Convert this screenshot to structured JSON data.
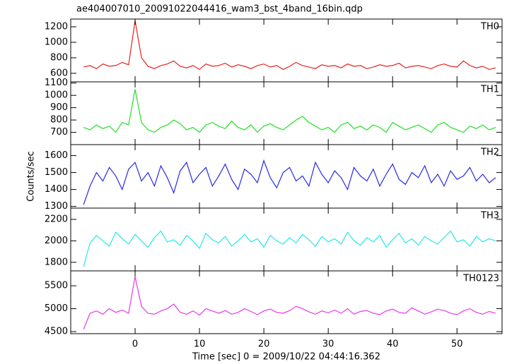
{
  "chart_data": [
    {
      "type": "line",
      "title": "ae404007010_20091022044416_wam3_bst_4band_16bin.qdp",
      "xlim": [
        -10,
        57
      ],
      "ylim": [
        490,
        1300
      ],
      "yticks": [
        600,
        800,
        1000,
        1200
      ],
      "series": [
        {
          "name": "TH0",
          "color": "#e8211e",
          "x": [
            -8,
            -7,
            -6,
            -5,
            -4,
            -3,
            -2,
            -1,
            0,
            1,
            2,
            3,
            4,
            5,
            6,
            7,
            8,
            9,
            10,
            11,
            12,
            13,
            14,
            15,
            16,
            17,
            18,
            19,
            20,
            21,
            22,
            23,
            24,
            25,
            26,
            27,
            28,
            29,
            30,
            31,
            32,
            33,
            34,
            35,
            36,
            37,
            38,
            39,
            40,
            41,
            42,
            43,
            44,
            45,
            46,
            47,
            48,
            49,
            50,
            51,
            52,
            53,
            54,
            55,
            56
          ],
          "values": [
            680,
            700,
            660,
            720,
            690,
            700,
            740,
            710,
            1280,
            800,
            690,
            660,
            700,
            720,
            760,
            690,
            670,
            700,
            650,
            720,
            690,
            700,
            730,
            680,
            710,
            690,
            660,
            700,
            720,
            680,
            700,
            650,
            690,
            740,
            700,
            680,
            660,
            710,
            690,
            700,
            670,
            720,
            690,
            700,
            660,
            680,
            710,
            690,
            700,
            730,
            670,
            690,
            700,
            680,
            660,
            700,
            720,
            690,
            680,
            760,
            700,
            670,
            690,
            650,
            670
          ]
        }
      ]
    },
    {
      "type": "line",
      "xlim": [
        -10,
        57
      ],
      "ylim": [
        600,
        1110
      ],
      "yticks": [
        700,
        800,
        900,
        1000,
        1100
      ],
      "series": [
        {
          "name": "TH1",
          "color": "#22e022",
          "x": [
            -8,
            -7,
            -6,
            -5,
            -4,
            -3,
            -2,
            -1,
            0,
            1,
            2,
            3,
            4,
            5,
            6,
            7,
            8,
            9,
            10,
            11,
            12,
            13,
            14,
            15,
            16,
            17,
            18,
            19,
            20,
            21,
            22,
            23,
            24,
            25,
            26,
            27,
            28,
            29,
            30,
            31,
            32,
            33,
            34,
            35,
            36,
            37,
            38,
            39,
            40,
            41,
            42,
            43,
            44,
            45,
            46,
            47,
            48,
            49,
            50,
            51,
            52,
            53,
            54,
            55,
            56
          ],
          "values": [
            740,
            720,
            760,
            730,
            750,
            700,
            780,
            760,
            1050,
            780,
            720,
            700,
            740,
            760,
            800,
            770,
            720,
            740,
            700,
            760,
            780,
            750,
            730,
            790,
            740,
            720,
            760,
            700,
            750,
            770,
            740,
            720,
            760,
            800,
            830,
            780,
            750,
            720,
            740,
            700,
            760,
            780,
            730,
            750,
            720,
            760,
            740,
            700,
            780,
            750,
            720,
            740,
            760,
            730,
            700,
            760,
            780,
            740,
            720,
            700,
            750,
            730,
            760,
            720,
            740
          ]
        }
      ]
    },
    {
      "type": "line",
      "ylabel": "Counts/sec",
      "xlim": [
        -10,
        57
      ],
      "ylim": [
        1290,
        1665
      ],
      "yticks": [
        1300,
        1400,
        1500,
        1600
      ],
      "series": [
        {
          "name": "TH2",
          "color": "#2a2ae0",
          "x": [
            -8,
            -7,
            -6,
            -5,
            -4,
            -3,
            -2,
            -1,
            0,
            1,
            2,
            3,
            4,
            5,
            6,
            7,
            8,
            9,
            10,
            11,
            12,
            13,
            14,
            15,
            16,
            17,
            18,
            19,
            20,
            21,
            22,
            23,
            24,
            25,
            26,
            27,
            28,
            29,
            30,
            31,
            32,
            33,
            34,
            35,
            36,
            37,
            38,
            39,
            40,
            41,
            42,
            43,
            44,
            45,
            46,
            47,
            48,
            49,
            50,
            51,
            52,
            53,
            54,
            55,
            56
          ],
          "values": [
            1310,
            1420,
            1500,
            1450,
            1530,
            1480,
            1400,
            1520,
            1560,
            1450,
            1500,
            1420,
            1540,
            1470,
            1380,
            1510,
            1560,
            1440,
            1490,
            1530,
            1420,
            1480,
            1550,
            1460,
            1400,
            1520,
            1490,
            1440,
            1570,
            1470,
            1410,
            1500,
            1530,
            1450,
            1480,
            1420,
            1560,
            1490,
            1440,
            1510,
            1470,
            1400,
            1530,
            1480,
            1450,
            1520,
            1420,
            1490,
            1550,
            1460,
            1430,
            1500,
            1470,
            1540,
            1440,
            1490,
            1420,
            1510,
            1460,
            1480,
            1530,
            1450,
            1490,
            1440,
            1470
          ]
        }
      ]
    },
    {
      "type": "line",
      "xlim": [
        -10,
        57
      ],
      "ylim": [
        1720,
        2305
      ],
      "yticks": [
        1800,
        2000,
        2200
      ],
      "series": [
        {
          "name": "TH3",
          "color": "#22e8e8",
          "x": [
            -8,
            -7,
            -6,
            -5,
            -4,
            -3,
            -2,
            -1,
            0,
            1,
            2,
            3,
            4,
            5,
            6,
            7,
            8,
            9,
            10,
            11,
            12,
            13,
            14,
            15,
            16,
            17,
            18,
            19,
            20,
            21,
            22,
            23,
            24,
            25,
            26,
            27,
            28,
            29,
            30,
            31,
            32,
            33,
            34,
            35,
            36,
            37,
            38,
            39,
            40,
            41,
            42,
            43,
            44,
            45,
            46,
            47,
            48,
            49,
            50,
            51,
            52,
            53,
            54,
            55,
            56
          ],
          "values": [
            1760,
            1980,
            2050,
            2000,
            1950,
            2080,
            2020,
            1970,
            2060,
            2000,
            1940,
            2030,
            2090,
            1990,
            2010,
            1960,
            2050,
            2000,
            1930,
            2070,
            2010,
            1980,
            2040,
            1950,
            2000,
            2060,
            1990,
            2020,
            1940,
            2050,
            2000,
            1970,
            2030,
            1980,
            2060,
            2010,
            1950,
            2040,
            1990,
            2020,
            1970,
            2080,
            2000,
            1960,
            2030,
            1990,
            2050,
            1940,
            2010,
            2070,
            1980,
            2020,
            1960,
            2040,
            2000,
            1970,
            2030,
            2090,
            1990,
            2010,
            1950,
            2040,
            1990,
            2020,
            2000
          ]
        }
      ]
    },
    {
      "type": "line",
      "xlabel": "Time [sec] 0 = 2009/10/22 04:44:16.362",
      "xlim": [
        -10,
        57
      ],
      "xticks": [
        0,
        10,
        20,
        30,
        40,
        50
      ],
      "ylim": [
        4455,
        5825
      ],
      "yticks": [
        4500,
        5000,
        5500
      ],
      "series": [
        {
          "name": "TH0123",
          "color": "#e838e8",
          "x": [
            -8,
            -7,
            -6,
            -5,
            -4,
            -3,
            -2,
            -1,
            0,
            1,
            2,
            3,
            4,
            5,
            6,
            7,
            8,
            9,
            10,
            11,
            12,
            13,
            14,
            15,
            16,
            17,
            18,
            19,
            20,
            21,
            22,
            23,
            24,
            25,
            26,
            27,
            28,
            29,
            30,
            31,
            32,
            33,
            34,
            35,
            36,
            37,
            38,
            39,
            40,
            41,
            42,
            43,
            44,
            45,
            46,
            47,
            48,
            49,
            50,
            51,
            52,
            53,
            54,
            55,
            56
          ],
          "values": [
            4550,
            4900,
            4950,
            4880,
            5000,
            4920,
            4970,
            4900,
            5700,
            5050,
            4900,
            4880,
            4950,
            5000,
            5100,
            4920,
            4880,
            4950,
            4860,
            5000,
            4950,
            4900,
            4960,
            4880,
            4920,
            5000,
            4940,
            4870,
            4950,
            4990,
            4920,
            4900,
            4960,
            5050,
            5000,
            4930,
            4880,
            4950,
            4910,
            4970,
            4900,
            5000,
            4880,
            4940,
            4960,
            4900,
            4870,
            4950,
            4990,
            4920,
            4900,
            5020,
            4950,
            4880,
            4930,
            4990,
            4960,
            4900,
            4870,
            4950,
            5000,
            4920,
            4880,
            4940,
            4900
          ]
        }
      ]
    }
  ]
}
